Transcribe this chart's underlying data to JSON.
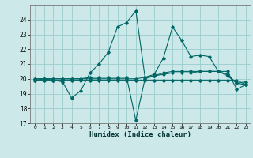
{
  "xlabel": "Humidex (Indice chaleur)",
  "bg_color": "#cce8e8",
  "grid_color": "#99cccc",
  "line_color": "#006666",
  "xlim": [
    -0.5,
    23.5
  ],
  "ylim": [
    17,
    25
  ],
  "yticks": [
    17,
    18,
    19,
    20,
    21,
    22,
    23,
    24
  ],
  "xticks": [
    0,
    1,
    2,
    3,
    4,
    5,
    6,
    7,
    8,
    9,
    10,
    11,
    12,
    13,
    14,
    15,
    16,
    17,
    18,
    19,
    20,
    21,
    22,
    23
  ],
  "series": [
    {
      "x": [
        0,
        1,
        2,
        3,
        4,
        5,
        6,
        7,
        8,
        9,
        10,
        11,
        12,
        13,
        14,
        15,
        16,
        17,
        18,
        19,
        20,
        21,
        22,
        23
      ],
      "y": [
        20.0,
        20.0,
        19.9,
        19.8,
        18.7,
        19.2,
        20.4,
        21.0,
        21.8,
        23.5,
        23.8,
        24.6,
        20.1,
        20.3,
        21.4,
        23.5,
        22.6,
        21.5,
        21.6,
        21.5,
        20.5,
        20.2,
        19.7,
        19.8
      ]
    },
    {
      "x": [
        0,
        1,
        2,
        3,
        4,
        5,
        6,
        7,
        8,
        9,
        10,
        11,
        12,
        13,
        14,
        15,
        16,
        17,
        18,
        19,
        20,
        21,
        22,
        23
      ],
      "y": [
        19.9,
        19.9,
        19.9,
        19.9,
        19.9,
        19.9,
        19.9,
        19.9,
        19.9,
        19.9,
        19.9,
        19.9,
        19.9,
        19.9,
        19.9,
        19.9,
        19.9,
        19.9,
        19.9,
        19.9,
        19.9,
        19.9,
        19.9,
        19.6
      ]
    },
    {
      "x": [
        0,
        1,
        2,
        3,
        4,
        5,
        6,
        7,
        8,
        9,
        10,
        11,
        12,
        13,
        14,
        15,
        16,
        17,
        18,
        19,
        20,
        21,
        22,
        23
      ],
      "y": [
        20.0,
        20.0,
        20.0,
        20.0,
        20.0,
        20.0,
        20.0,
        20.0,
        20.0,
        20.0,
        20.0,
        20.0,
        20.1,
        20.2,
        20.3,
        20.4,
        20.4,
        20.4,
        20.5,
        20.5,
        20.5,
        20.3,
        19.7,
        19.6
      ]
    },
    {
      "x": [
        0,
        1,
        2,
        3,
        4,
        5,
        6,
        7,
        8,
        9,
        10,
        11,
        12,
        13,
        14,
        15,
        16,
        17,
        18,
        19,
        20,
        21,
        22,
        23
      ],
      "y": [
        19.9,
        20.0,
        20.0,
        20.0,
        20.0,
        20.0,
        20.1,
        20.1,
        20.1,
        20.1,
        20.1,
        17.2,
        20.0,
        20.2,
        20.4,
        20.5,
        20.5,
        20.5,
        20.5,
        20.5,
        20.5,
        20.5,
        19.3,
        19.6
      ]
    }
  ]
}
